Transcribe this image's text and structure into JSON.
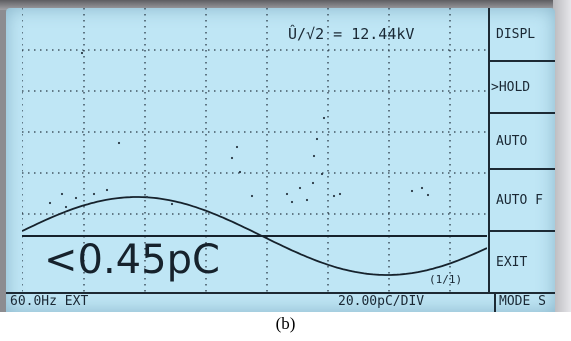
{
  "display": {
    "voltage_readout": "Û/√2 = 12.44kV",
    "charge_readout": "<0.45pC",
    "page_indicator": "(1/1)"
  },
  "menu": [
    {
      "label": "DISPL"
    },
    {
      "label": ">HOLD"
    },
    {
      "label": "AUTO"
    },
    {
      "label": "AUTO F"
    },
    {
      "label": "EXIT"
    }
  ],
  "status": {
    "frequency": "60.0Hz EXT",
    "scale": "20.00pC/DIV",
    "mode": "MODE S"
  },
  "caption": "(b)",
  "colors": {
    "lcd": "#bfe6f5",
    "ink": "#1a2834"
  }
}
